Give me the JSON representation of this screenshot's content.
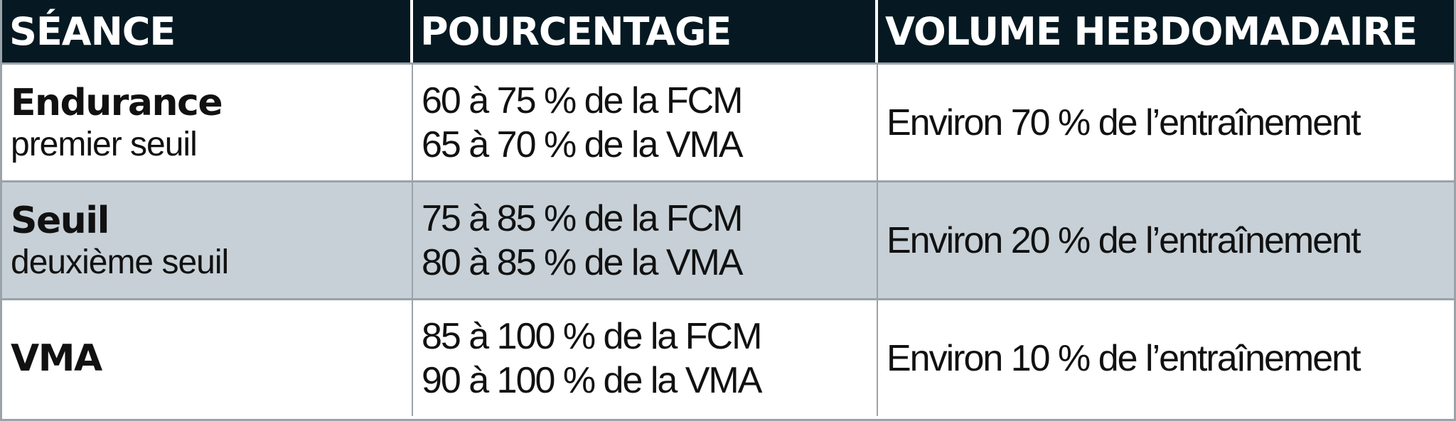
{
  "table": {
    "headers": [
      "SÉANCE",
      "POURCENTAGE",
      "VOLUME HEBDOMADAIRE"
    ],
    "rows": [
      {
        "session": "Endurance",
        "session_sub": "premier seuil",
        "pct_line1": "60 à 75 % de la FCM",
        "pct_line2": "65 à 70 % de la VMA",
        "volume": "Environ 70 % de l’entraînement"
      },
      {
        "session": "Seuil",
        "session_sub": "deuxième seuil",
        "pct_line1": "75 à 85 % de la FCM",
        "pct_line2": "80 à 85 % de la VMA",
        "volume": "Environ 20 % de l’entraînement"
      },
      {
        "session": "VMA",
        "session_sub": "",
        "pct_line1": "85 à 100 % de la FCM",
        "pct_line2": "90 à 100 % de la VMA",
        "volume": "Environ 10 % de l’entraînement"
      }
    ]
  },
  "colors": {
    "header_bg": "#061922",
    "header_text": "#ffffff",
    "alt_row_bg": "#c7d0d7",
    "grid_line": "#9aa3aa"
  }
}
